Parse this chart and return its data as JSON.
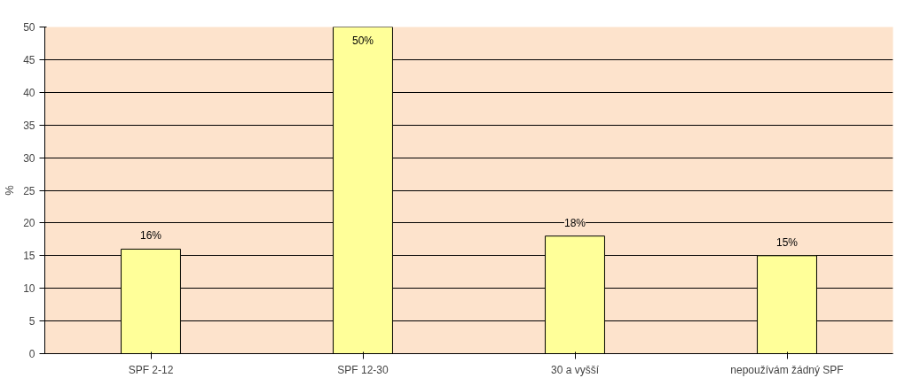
{
  "chart_data": {
    "type": "bar",
    "ylabel": "%",
    "categories": [
      "SPF 2-12",
      "SPF 12-30",
      "30 a vyšší",
      "nepoužívám žádný SPF"
    ],
    "values": [
      16,
      50,
      18,
      15
    ],
    "value_labels": [
      "16%",
      "50%",
      "18%",
      "15%"
    ],
    "color": "#ffff99",
    "ylim": [
      0,
      50
    ],
    "yticks": [
      0,
      5,
      10,
      15,
      20,
      25,
      30,
      35,
      40,
      45,
      50
    ],
    "grid": "y"
  }
}
